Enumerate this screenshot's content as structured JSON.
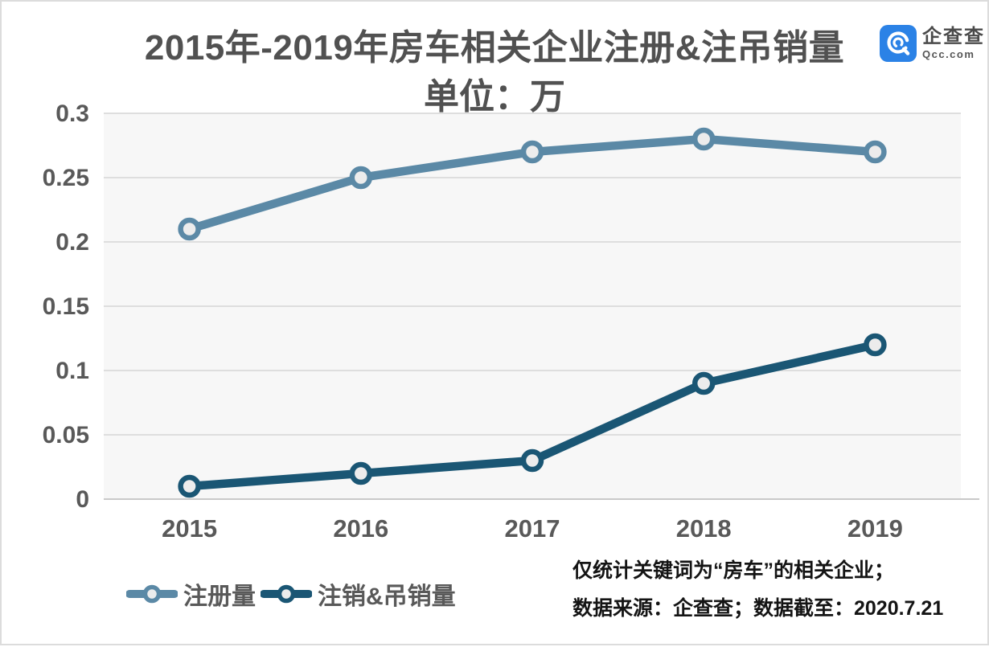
{
  "header": {
    "title_line1": "2015年-2019年房车相关企业注册&注吊销量",
    "title_line2": "单位：万"
  },
  "logo": {
    "name": "企查查",
    "domain": "Qcc.com",
    "brand_color": "#2b82e6"
  },
  "chart_data": {
    "type": "line",
    "title": "2015年-2019年房车相关企业注册&注吊销量",
    "subtitle": "单位：万",
    "categories": [
      "2015",
      "2016",
      "2017",
      "2018",
      "2019"
    ],
    "series": [
      {
        "name": "注册量",
        "values": [
          0.21,
          0.25,
          0.27,
          0.28,
          0.27
        ],
        "color": "#5b89a6"
      },
      {
        "name": "注销&吊销量",
        "values": [
          0.01,
          0.02,
          0.03,
          0.09,
          0.12
        ],
        "color": "#1a5674"
      }
    ],
    "xlabel": "",
    "ylabel": "",
    "ylim": [
      0,
      0.3
    ],
    "yticks": [
      0,
      0.05,
      0.1,
      0.15,
      0.2,
      0.25,
      0.3
    ],
    "grid": true,
    "legend_position": "bottom-left",
    "plot_bg": "#f7f7f7",
    "grid_color": "#dedede",
    "axis_line_color": "#c9c9c9",
    "tick_label_color": "#595959",
    "marker_fill": "#ececec"
  },
  "footnotes": [
    "仅统计关键词为“房车”的相关企业；",
    "数据来源：企查查；数据截至：2020.7.21"
  ]
}
